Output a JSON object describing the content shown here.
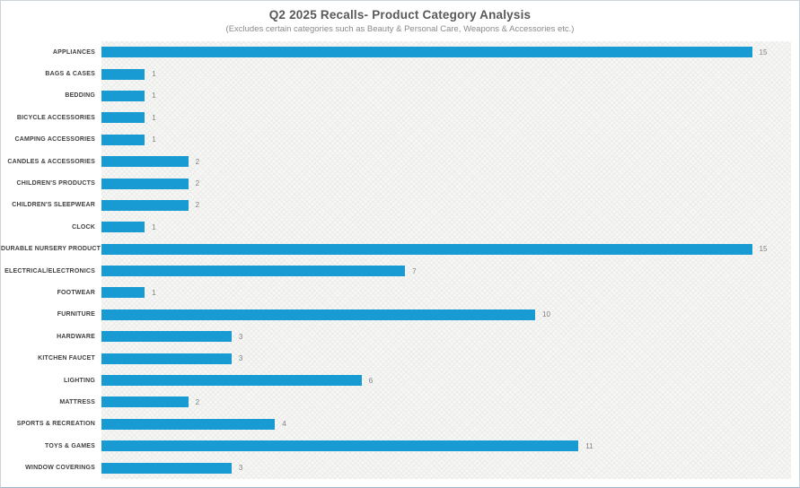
{
  "header": {
    "title": "Q2 2025 Recalls- Product Category Analysis",
    "subtitle": "(Excludes certain categories such as Beauty & Personal Care, Weapons & Accessories etc.)"
  },
  "chart_data": {
    "type": "bar",
    "orientation": "horizontal",
    "title": "Q2 2025 Recalls- Product Category Analysis",
    "subtitle": "(Excludes certain categories such as Beauty & Personal Care, Weapons & Accessories etc.)",
    "xlabel": "",
    "ylabel": "",
    "xlim": [
      0,
      16
    ],
    "grid": false,
    "data_labels": true,
    "legend": "none",
    "categories": [
      "APPLIANCES",
      "BAGS & CASES",
      "BEDDING",
      "BICYCLE ACCESSORIES",
      "CAMPING ACCESSORIES",
      "CANDLES & ACCESSORIES",
      "CHILDREN'S PRODUCTS",
      "CHILDREN'S SLEEPWEAR",
      "CLOCK",
      "DURABLE NURSERY PRODUCT",
      "ELECTRICAL/ELECTRONICS",
      "FOOTWEAR",
      "FURNITURE",
      "HARDWARE",
      "KITCHEN FAUCET",
      "LIGHTING",
      "MATTRESS",
      "SPORTS & RECREATION",
      "TOYS & GAMES",
      "WINDOW COVERINGS"
    ],
    "values": [
      15,
      1,
      1,
      1,
      1,
      2,
      2,
      2,
      1,
      15,
      7,
      1,
      10,
      3,
      3,
      6,
      2,
      4,
      11,
      3
    ]
  },
  "colors": {
    "bar": "#189ad3",
    "title": "#595959",
    "subtitle": "#8a8a8a",
    "category_label": "#3f3f3f",
    "value_label": "#7f7f7f",
    "plot_background": "#f7f7f6",
    "border": "#ccd4da"
  }
}
